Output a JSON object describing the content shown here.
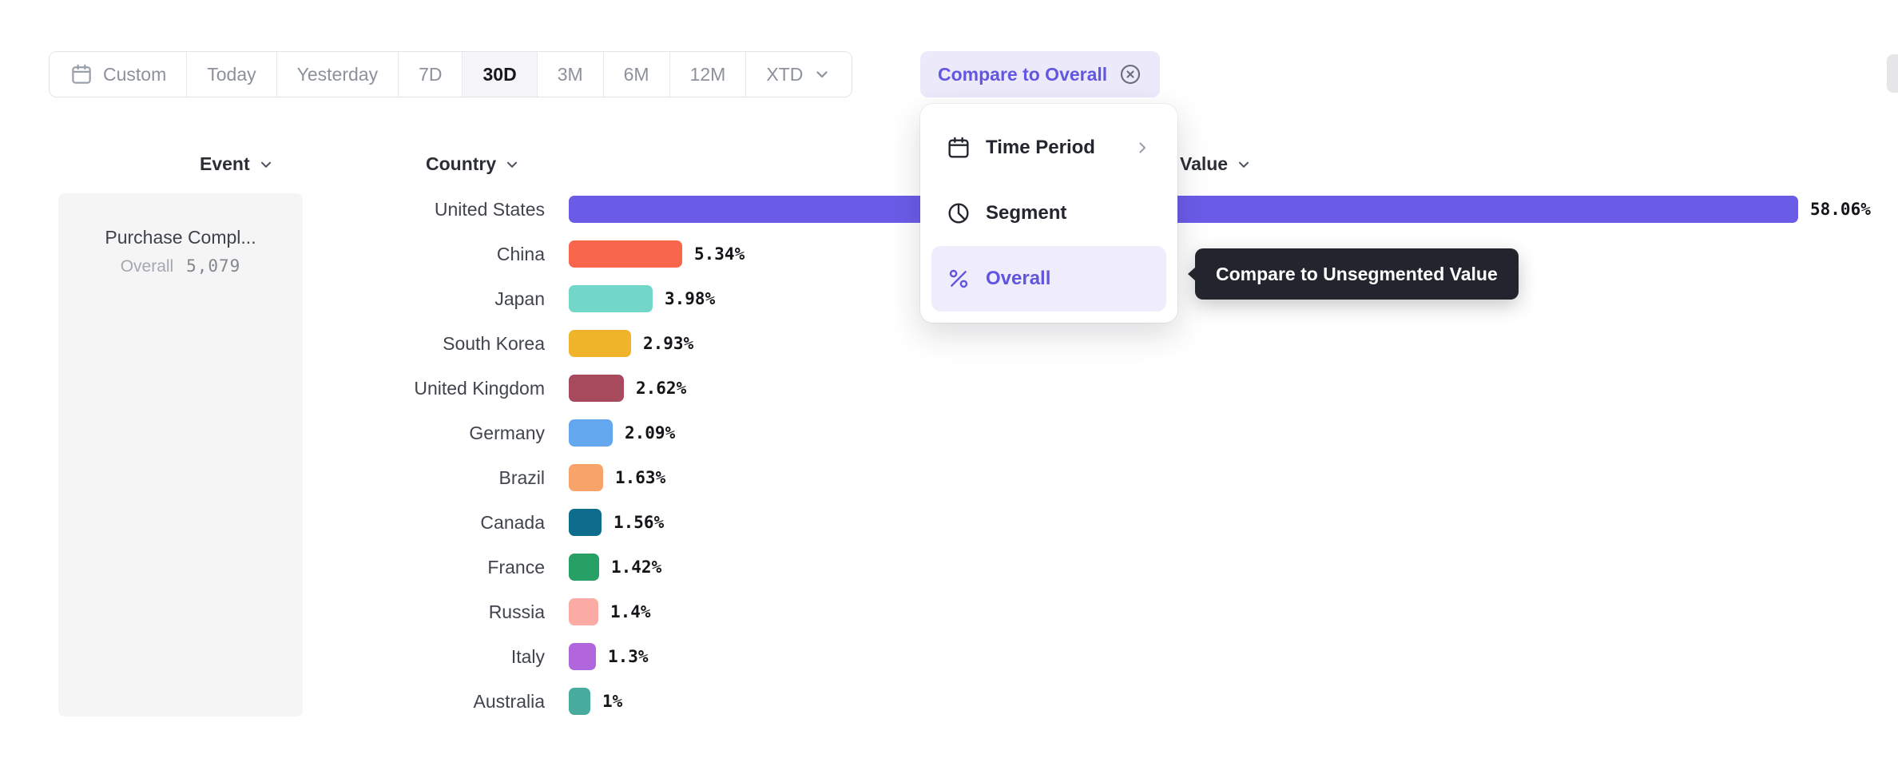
{
  "toolbar": {
    "date_ranges": [
      {
        "label": "Custom",
        "icon": "calendar",
        "active": false,
        "has_chevron": false
      },
      {
        "label": "Today",
        "active": false,
        "has_chevron": false
      },
      {
        "label": "Yesterday",
        "active": false,
        "has_chevron": false
      },
      {
        "label": "7D",
        "active": false,
        "has_chevron": false
      },
      {
        "label": "30D",
        "active": true,
        "has_chevron": false
      },
      {
        "label": "3M",
        "active": false,
        "has_chevron": false
      },
      {
        "label": "6M",
        "active": false,
        "has_chevron": false
      },
      {
        "label": "12M",
        "active": false,
        "has_chevron": false
      },
      {
        "label": "XTD",
        "active": false,
        "has_chevron": true
      }
    ],
    "compare_button_label": "Compare to Overall"
  },
  "compare_menu": {
    "items": [
      {
        "label": "Time Period",
        "icon": "calendar",
        "has_submenu": true,
        "selected": false
      },
      {
        "label": "Segment",
        "icon": "segment",
        "has_submenu": false,
        "selected": false
      },
      {
        "label": "Overall",
        "icon": "percent",
        "has_submenu": false,
        "selected": true
      }
    ]
  },
  "tooltip": {
    "text": "Compare to Unsegmented Value"
  },
  "table": {
    "event_header": "Event",
    "country_header": "Country",
    "value_header": "Value"
  },
  "event_panel": {
    "name": "Purchase Compl...",
    "overall_label": "Overall",
    "overall_value": "5,079"
  },
  "chart_data": {
    "type": "bar",
    "orientation": "horizontal",
    "categories": [
      "United States",
      "China",
      "Japan",
      "South Korea",
      "United Kingdom",
      "Germany",
      "Brazil",
      "Canada",
      "France",
      "Russia",
      "Italy",
      "Australia"
    ],
    "values": [
      58.06,
      5.34,
      3.98,
      2.93,
      2.62,
      2.09,
      1.63,
      1.56,
      1.42,
      1.4,
      1.3,
      1
    ],
    "value_labels": [
      "58.06%",
      "5.34%",
      "3.98%",
      "2.93%",
      "2.62%",
      "2.09%",
      "1.63%",
      "1.56%",
      "1.42%",
      "1.4%",
      "1.3%",
      "1%"
    ],
    "colors": [
      "#6B5CE8",
      "#F8674C",
      "#72D7C8",
      "#F0B42B",
      "#A84A5E",
      "#63A8EF",
      "#F8A369",
      "#0E6D8C",
      "#27A065",
      "#FBABA3",
      "#B167DB",
      "#47AB9D"
    ],
    "title": "",
    "xlabel": "",
    "ylabel": "",
    "xlim": [
      0,
      60
    ],
    "grid": false,
    "legend": false
  }
}
